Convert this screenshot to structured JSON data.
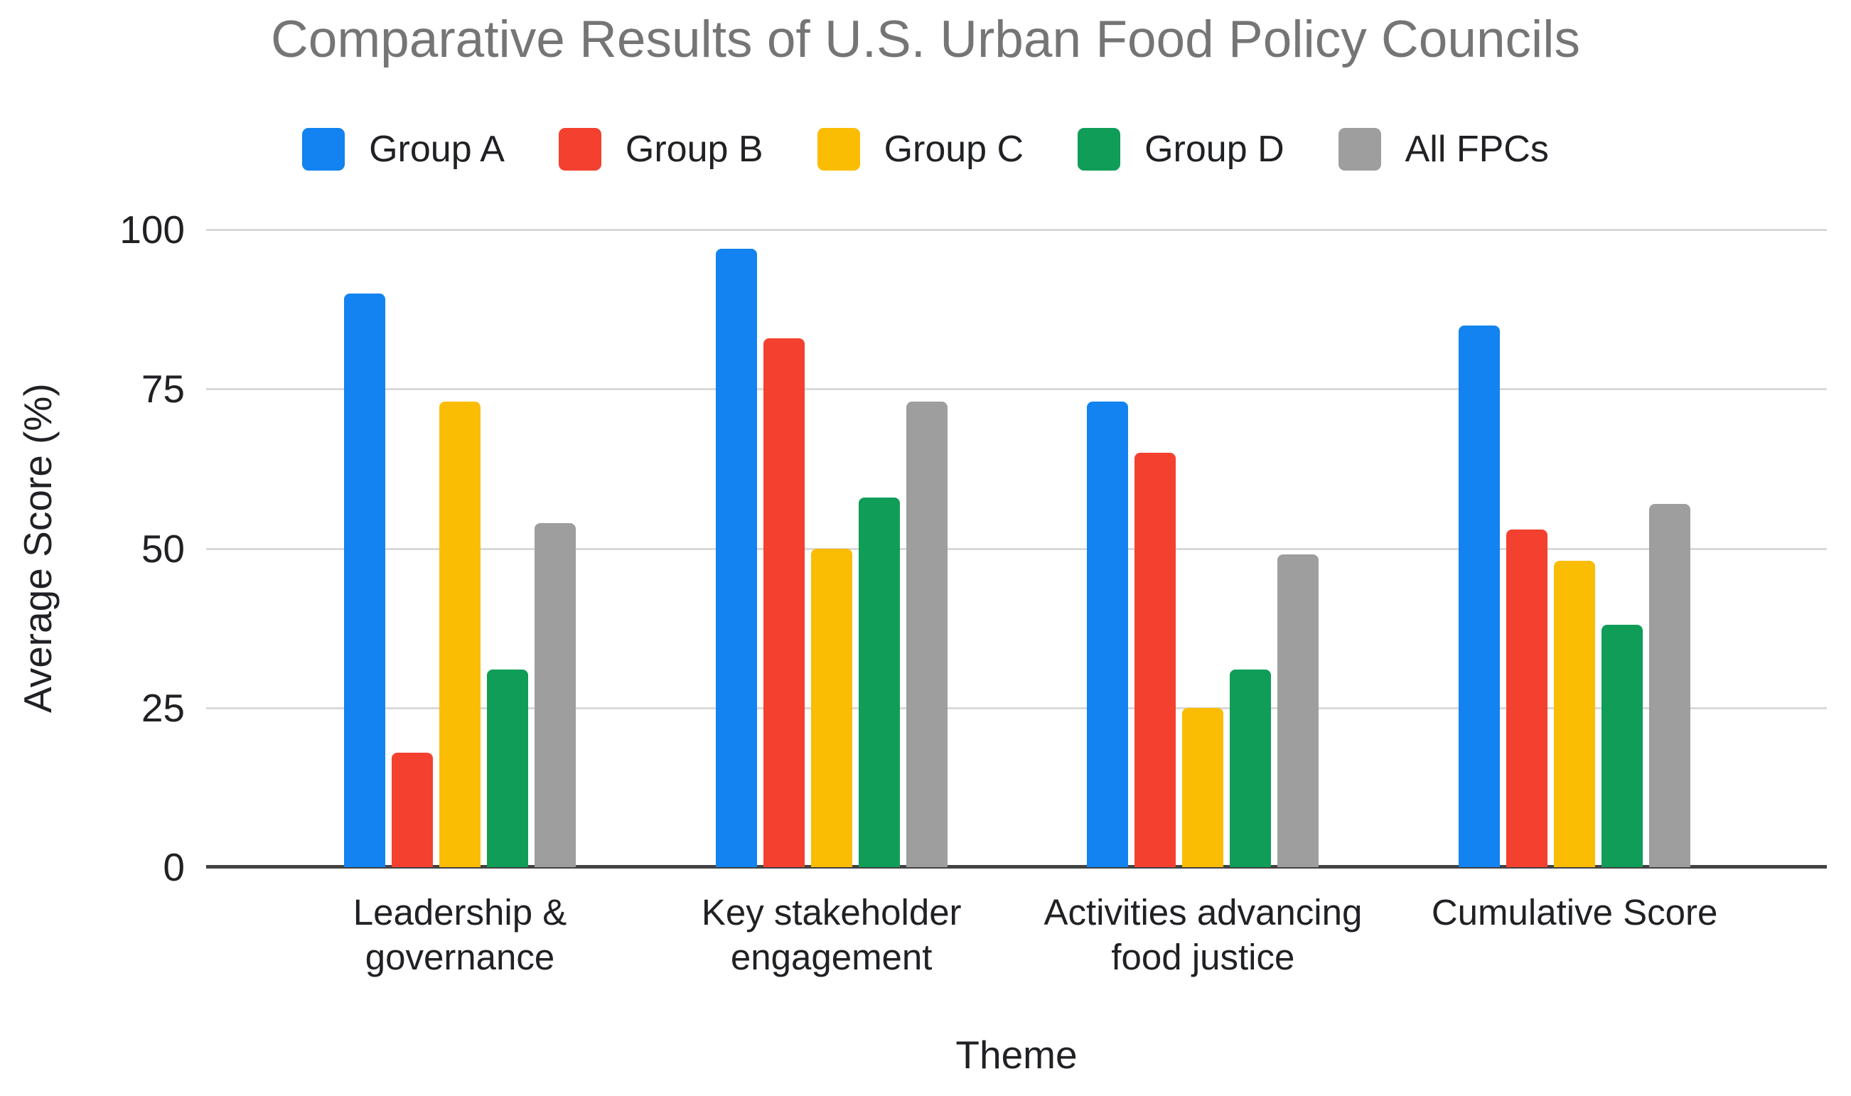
{
  "chart_data": {
    "type": "bar",
    "title": "Comparative Results of U.S. Urban Food Policy Councils",
    "xlabel": "Theme",
    "ylabel": "Average Score (%)",
    "ylim": [
      0,
      100
    ],
    "yticks": [
      100,
      75,
      50,
      25,
      0
    ],
    "grid": true,
    "legend_position": "top",
    "categories": [
      "Leadership & governance",
      "Key stakeholder engagement",
      "Activities advancing food justice",
      "Cumulative Score"
    ],
    "series": [
      {
        "name": "Group A",
        "color": "#1283F0",
        "values": [
          90,
          97,
          73,
          85
        ]
      },
      {
        "name": "Group B",
        "color": "#F4402F",
        "values": [
          18,
          83,
          65,
          53
        ]
      },
      {
        "name": "Group C",
        "color": "#FBBC04",
        "values": [
          73,
          50,
          25,
          48
        ]
      },
      {
        "name": "Group D",
        "color": "#0F9D58",
        "values": [
          31,
          58,
          31,
          38
        ]
      },
      {
        "name": "All FPCs",
        "color": "#9E9E9E",
        "values": [
          54,
          73,
          49,
          57
        ]
      }
    ],
    "colors": {
      "title": "#757575",
      "axis_line": "#424242",
      "gridline": "#D9D9D9",
      "tick_labels": "#202124",
      "category_labels": "#202124"
    }
  }
}
